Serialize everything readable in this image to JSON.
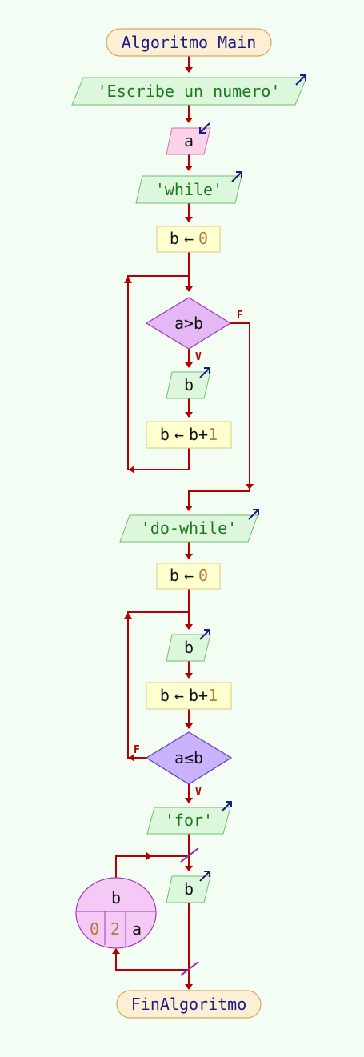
{
  "flowchart": {
    "start": "Algoritmo Main",
    "write_prompt": "'Escribe un numero'",
    "read_var": "a",
    "write_while": "'while'",
    "assign_b0_var": "b",
    "assign_arrow": "←",
    "zero": "0",
    "one": "1",
    "while_condition": "a>b",
    "true_label": "V",
    "false_label": "F",
    "write_b": "b",
    "increment_var": "b",
    "increment_expr": "b+",
    "write_dowhile": "'do-while'",
    "dowhile_condition": "a≤b",
    "write_for": "'for'",
    "for_var": "b",
    "for_start": "0",
    "for_step": "2",
    "for_end": "a",
    "end": "FinAlgoritmo"
  },
  "colors": {
    "flow_line": "#b30000",
    "background": "#f4fdf4",
    "string_text": "#1b7a1b",
    "number_text": "#b37a3a",
    "keyword_text": "#1a1a8a"
  }
}
